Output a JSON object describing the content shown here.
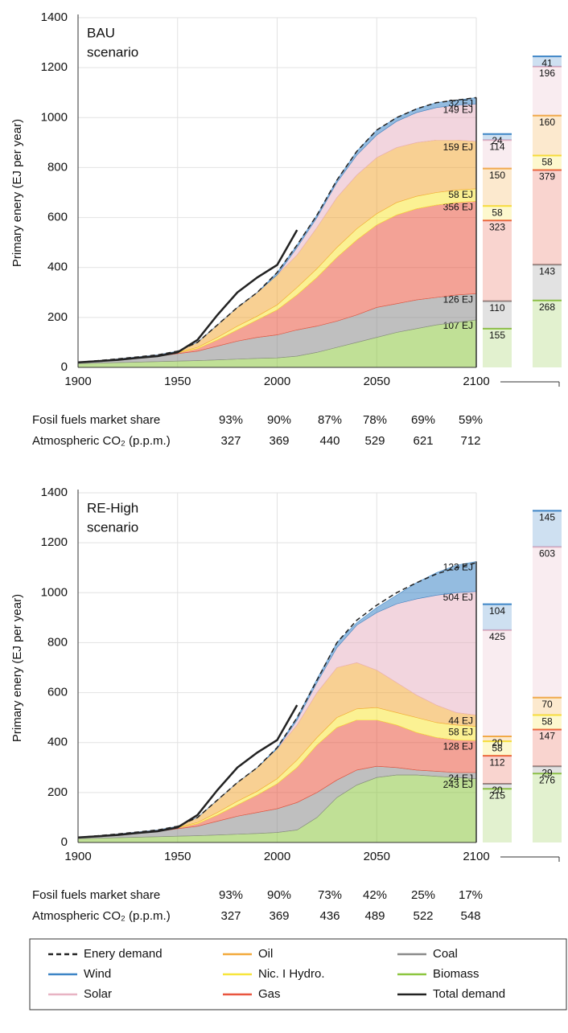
{
  "chart_data": [
    {
      "type": "area",
      "title": [
        "BAU",
        "scenario"
      ],
      "y_label": "Primary enery (EJ per year)",
      "x": [
        1900,
        1910,
        1920,
        1930,
        1940,
        1950,
        1960,
        1970,
        1980,
        1990,
        2000,
        2010,
        2020,
        2030,
        2040,
        2050,
        2060,
        2070,
        2080,
        2090,
        2100
      ],
      "xlim": [
        1900,
        2100
      ],
      "xticks": [
        1900,
        1950,
        2000,
        2050,
        2100
      ],
      "ylim": [
        0,
        1400
      ],
      "yticks": [
        0,
        200,
        400,
        600,
        800,
        1000,
        1200,
        1400
      ],
      "grid": true,
      "layers": [
        {
          "values": [
            15,
            17,
            19,
            21,
            23,
            25,
            27,
            30,
            33,
            36,
            38,
            45,
            60,
            80,
            100,
            120,
            140,
            155,
            170,
            180,
            190
          ],
          "bar_values": [
            155,
            268
          ],
          "end_label": "107 EJ"
        },
        {
          "values": [
            5,
            9,
            13,
            17,
            21,
            30,
            38,
            55,
            72,
            84,
            92,
            105,
            105,
            105,
            110,
            120,
            115,
            115,
            110,
            110,
            105
          ],
          "bar_values": [
            110,
            143
          ],
          "end_label": "126 EJ"
        },
        {
          "values": [
            0,
            0,
            1,
            2,
            2,
            3,
            10,
            25,
            45,
            70,
            100,
            140,
            195,
            255,
            300,
            330,
            355,
            365,
            370,
            370,
            370
          ],
          "bar_values": [
            323,
            379
          ],
          "end_label": "356 EJ"
        },
        {
          "values": [
            0,
            0,
            0,
            0,
            1,
            2,
            5,
            10,
            15,
            15,
            20,
            30,
            35,
            40,
            45,
            45,
            50,
            50,
            50,
            50,
            50
          ],
          "bar_values": [
            58,
            58
          ],
          "end_label": "58 EJ"
        },
        {
          "values": [
            0,
            1,
            1,
            2,
            3,
            5,
            20,
            50,
            75,
            95,
            120,
            130,
            165,
            200,
            215,
            225,
            220,
            215,
            210,
            200,
            190
          ],
          "bar_values": [
            150,
            160
          ],
          "end_label": "159 EJ"
        },
        {
          "values": [
            0,
            0,
            0,
            0,
            0,
            0,
            0,
            0,
            0,
            0,
            0,
            30,
            40,
            60,
            80,
            90,
            105,
            120,
            130,
            140,
            150
          ],
          "bar_values": [
            114,
            196
          ],
          "end_label": "149 EJ"
        },
        {
          "values": [
            0,
            0,
            0,
            0,
            0,
            0,
            0,
            0,
            0,
            0,
            10,
            10,
            10,
            10,
            15,
            20,
            15,
            15,
            20,
            20,
            25
          ],
          "bar_values": [
            24,
            41
          ],
          "end_label": "32 EJ"
        }
      ],
      "demand": [
        20,
        27,
        34,
        42,
        50,
        65,
        100,
        170,
        240,
        300,
        380,
        490,
        610,
        750,
        865,
        950,
        1000,
        1035,
        1060,
        1070,
        1080
      ],
      "total": [
        20,
        25,
        30,
        38,
        45,
        60,
        110,
        210,
        300,
        360,
        410,
        550,
        null,
        null,
        null,
        null,
        null,
        null,
        null,
        null,
        null
      ],
      "table": [
        {
          "label": "Fosil fuels market share",
          "cells": [
            "93%",
            "90%",
            "87%",
            "78%",
            "69%",
            "59%"
          ]
        },
        {
          "label": "Atmospheric CO₂ (p.p.m.)",
          "cells": [
            "327",
            "369",
            "440",
            "529",
            "621",
            "712"
          ]
        }
      ]
    },
    {
      "type": "area",
      "title": [
        "RE-High",
        "scenario"
      ],
      "y_label": "Primary enery (EJ per year)",
      "x": [
        1900,
        1910,
        1920,
        1930,
        1940,
        1950,
        1960,
        1970,
        1980,
        1990,
        2000,
        2010,
        2020,
        2030,
        2040,
        2050,
        2060,
        2070,
        2080,
        2090,
        2100
      ],
      "xlim": [
        1900,
        2100
      ],
      "xticks": [
        1900,
        1950,
        2000,
        2050,
        2100
      ],
      "ylim": [
        0,
        1400
      ],
      "yticks": [
        0,
        200,
        400,
        600,
        800,
        1000,
        1200,
        1400
      ],
      "grid": true,
      "layers": [
        {
          "values": [
            15,
            17,
            19,
            21,
            23,
            25,
            27,
            30,
            33,
            36,
            40,
            50,
            100,
            180,
            230,
            260,
            270,
            270,
            265,
            260,
            255
          ],
          "bar_values": [
            215,
            276
          ],
          "end_label": "243 EJ"
        },
        {
          "values": [
            5,
            9,
            13,
            17,
            21,
            30,
            38,
            55,
            72,
            84,
            95,
            110,
            100,
            70,
            60,
            45,
            30,
            20,
            20,
            20,
            25
          ],
          "bar_values": [
            20,
            29
          ],
          "end_label": "24 EJ"
        },
        {
          "values": [
            0,
            0,
            1,
            2,
            2,
            3,
            10,
            25,
            45,
            70,
            100,
            140,
            190,
            210,
            200,
            185,
            170,
            150,
            135,
            130,
            128
          ],
          "bar_values": [
            112,
            147
          ],
          "end_label": "128 EJ"
        },
        {
          "values": [
            0,
            0,
            0,
            0,
            1,
            2,
            5,
            10,
            15,
            15,
            20,
            30,
            30,
            40,
            45,
            50,
            50,
            60,
            60,
            60,
            57
          ],
          "bar_values": [
            58,
            58
          ],
          "end_label": "58 EJ"
        },
        {
          "values": [
            0,
            1,
            1,
            2,
            3,
            5,
            20,
            50,
            75,
            95,
            120,
            140,
            180,
            200,
            185,
            150,
            120,
            90,
            70,
            50,
            45
          ],
          "bar_values": [
            20,
            70
          ],
          "end_label": "44 EJ"
        },
        {
          "values": [
            0,
            0,
            0,
            0,
            0,
            0,
            0,
            0,
            0,
            0,
            0,
            20,
            40,
            80,
            150,
            230,
            315,
            385,
            440,
            480,
            495
          ],
          "bar_values": [
            425,
            603
          ],
          "end_label": "504 EJ"
        },
        {
          "values": [
            0,
            0,
            0,
            0,
            0,
            0,
            0,
            0,
            0,
            0,
            5,
            10,
            15,
            20,
            10,
            20,
            35,
            65,
            90,
            110,
            120
          ],
          "bar_values": [
            104,
            145
          ],
          "end_label": "123 EJ"
        }
      ],
      "demand": [
        20,
        27,
        34,
        42,
        50,
        65,
        100,
        170,
        240,
        300,
        380,
        500,
        650,
        800,
        890,
        950,
        1000,
        1040,
        1075,
        1100,
        1120
      ],
      "total": [
        20,
        25,
        30,
        38,
        45,
        60,
        110,
        210,
        300,
        360,
        410,
        550,
        null,
        null,
        null,
        null,
        null,
        null,
        null,
        null,
        null
      ],
      "table": [
        {
          "label": "Fosil fuels market share",
          "cells": [
            "93%",
            "90%",
            "73%",
            "42%",
            "25%",
            "17%"
          ]
        },
        {
          "label": "Atmospheric CO₂ (p.p.m.)",
          "cells": [
            "327",
            "369",
            "436",
            "489",
            "522",
            "548"
          ]
        }
      ]
    }
  ],
  "series": [
    {
      "name": "Biomass",
      "color": "#8cc63f"
    },
    {
      "name": "Coal",
      "color": "#8a8a8a"
    },
    {
      "name": "Gas",
      "color": "#e9553f"
    },
    {
      "name": "Nic. I Hydro.",
      "color": "#f7e53b"
    },
    {
      "name": "Oil",
      "color": "#f2a93b"
    },
    {
      "name": "Solar",
      "color": "#e8b3c3"
    },
    {
      "name": "Wind",
      "color": "#3d85c6"
    }
  ],
  "demand_style": {
    "name": "Enery demand",
    "color": "#222222",
    "dash": true
  },
  "total_style": {
    "name": "Total demand",
    "color": "#222222"
  }
}
